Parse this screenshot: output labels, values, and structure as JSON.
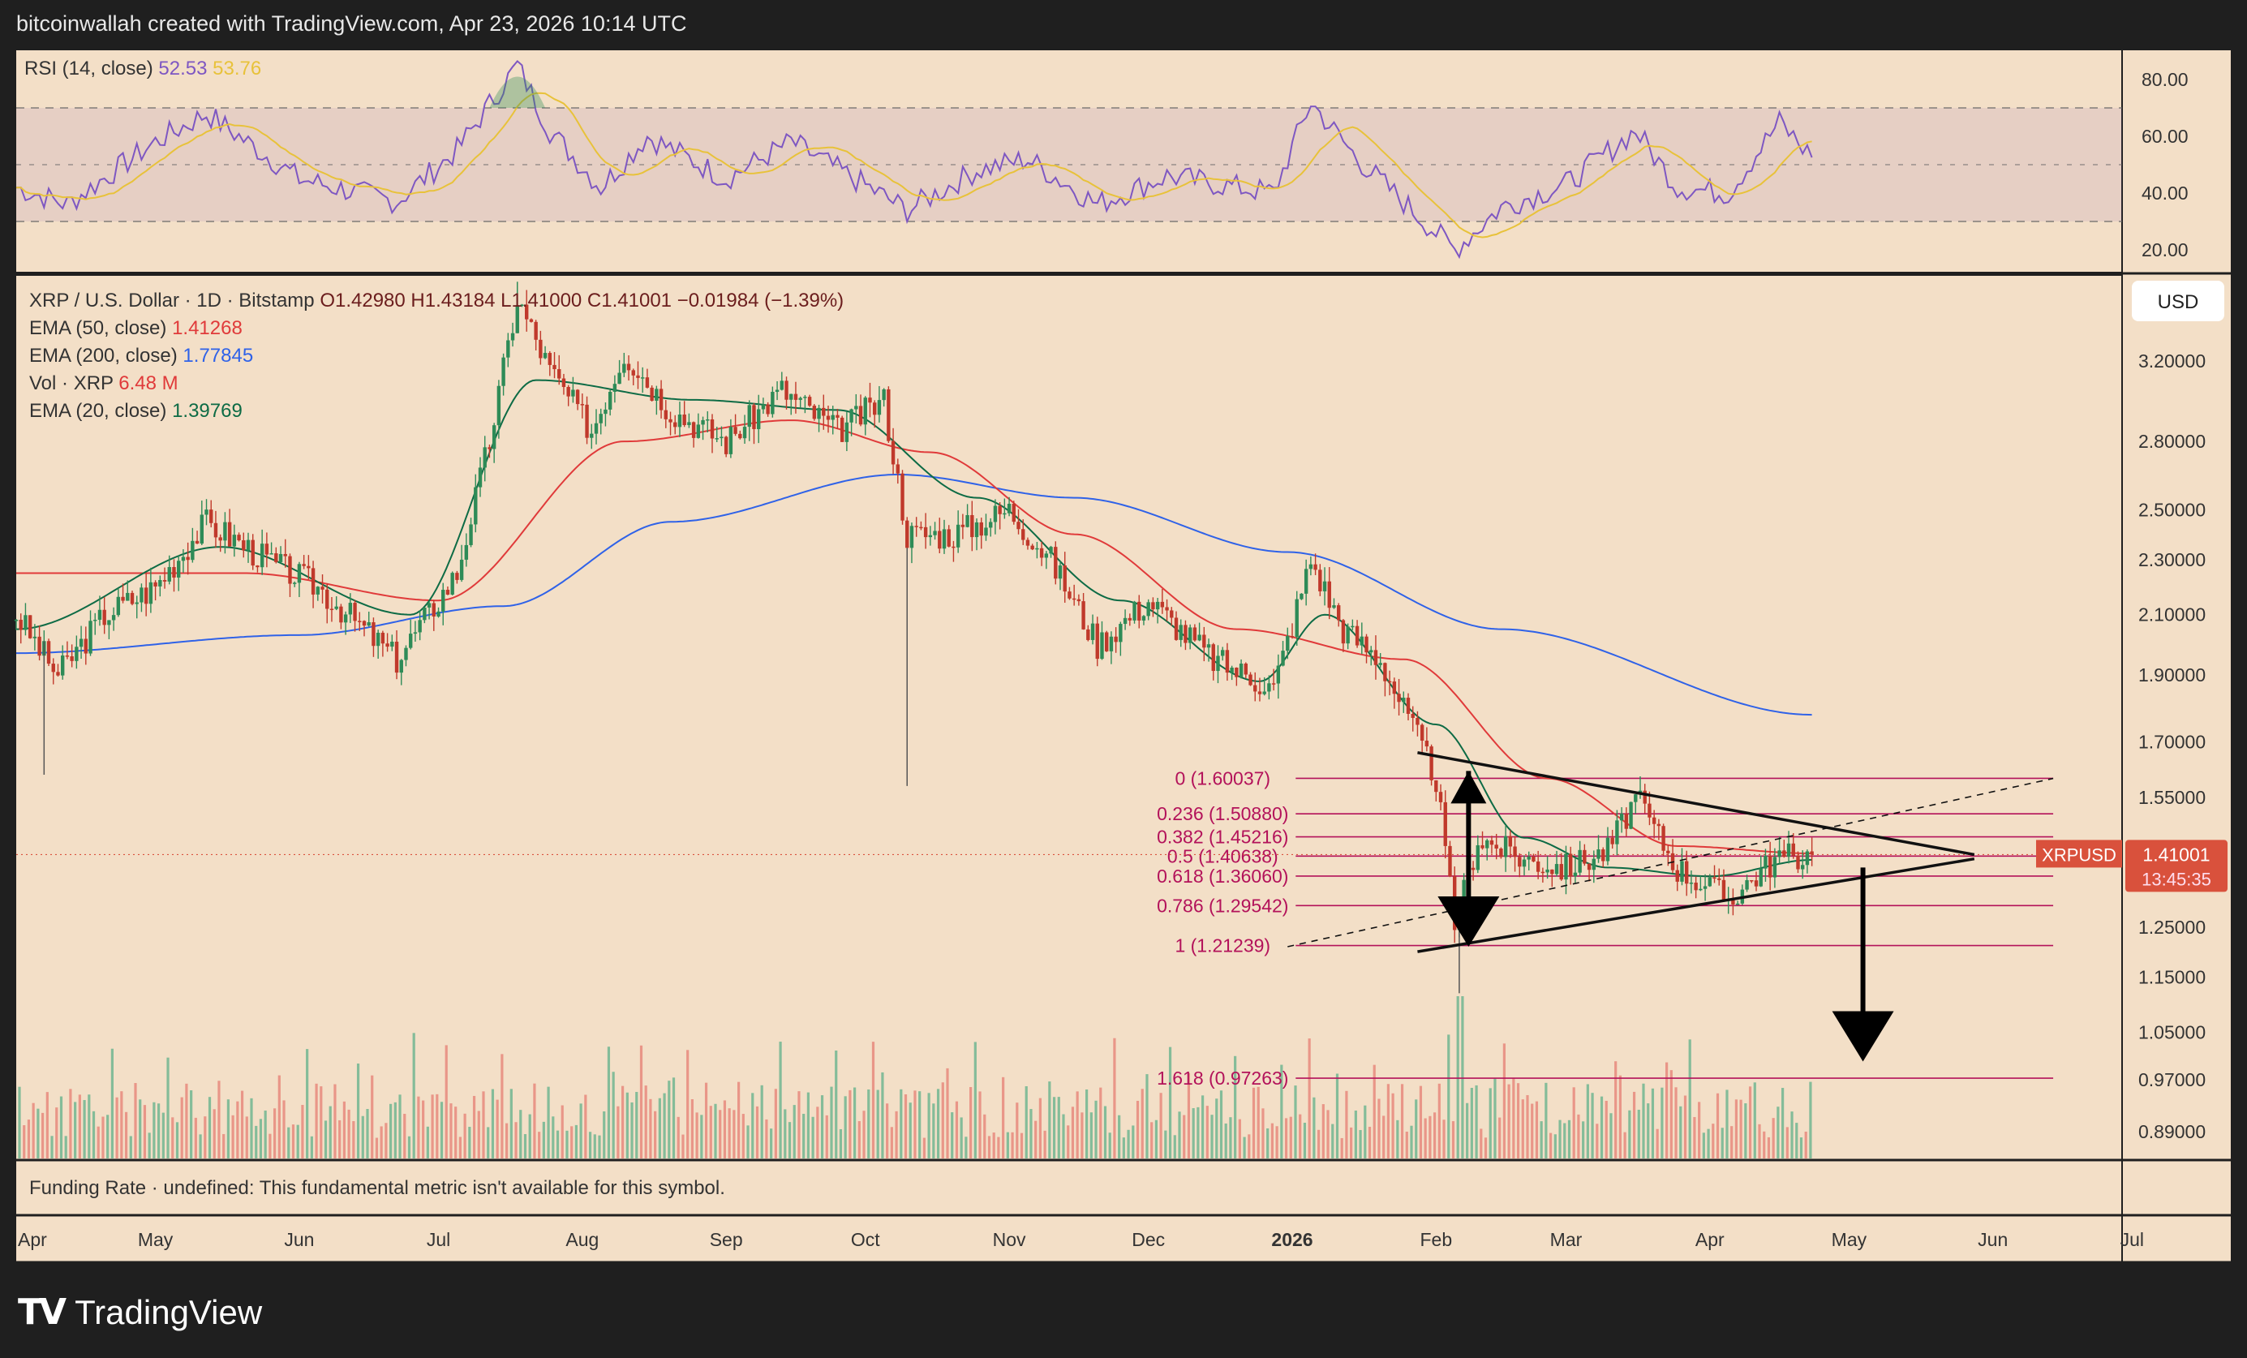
{
  "header": {
    "credit": "bitcoinwallah created with TradingView.com, Apr 23, 2026 10:14 UTC"
  },
  "footer": {
    "brand": "TradingView"
  },
  "colors": {
    "background": "#f3dfc7",
    "frame": "#1f1f1f",
    "candle_up": "#2e8b57",
    "candle_down": "#c0392b",
    "ema20": "#0d6b45",
    "ema50": "#e03a3a",
    "ema200": "#2f62e8",
    "rsi": "#7e57c2",
    "rsi_ma": "#e8c23a",
    "fib": "#b3125a",
    "price_badge": "#d9513c"
  },
  "rsi_panel": {
    "legend_name": "RSI (14, close)",
    "legend_v1": "52.53",
    "legend_v2": "53.76",
    "axis_labels": [
      "80.00",
      "60.00",
      "40.00",
      "20.00"
    ]
  },
  "main_panel": {
    "legend": {
      "symbol": "XRP / U.S. Dollar · 1D · Bitstamp",
      "ohlc": "O1.42980  H1.43184  L1.41000  C1.41001  −0.01984 (−1.39%)",
      "ema50_label": "EMA (50, close)",
      "ema50_value": "1.41268",
      "ema200_label": "EMA (200, close)",
      "ema200_value": "1.77845",
      "vol_label": "Vol · XRP",
      "vol_value": "6.48 M",
      "ema20_label": "EMA (20, close)",
      "ema20_value": "1.39769"
    },
    "currency_button": "USD",
    "price_axis": [
      "3.20000",
      "2.80000",
      "2.50000",
      "2.30000",
      "2.10000",
      "1.90000",
      "1.70000",
      "1.55000",
      "1.25000",
      "1.15000",
      "1.05000",
      "0.97000",
      "0.89000"
    ],
    "price_badge": {
      "symbol": "XRPUSD",
      "price": "1.41001",
      "countdown": "13:45:35"
    }
  },
  "funding_panel": {
    "text": "Funding Rate · undefined: This fundamental metric isn't available for this symbol."
  },
  "time_axis": [
    "Apr",
    "May",
    "Jun",
    "Jul",
    "Aug",
    "Sep",
    "Oct",
    "Nov",
    "Dec",
    "2026",
    "Feb",
    "Mar",
    "Apr",
    "May",
    "Jun",
    "Jul"
  ],
  "chart_data": {
    "type": "candlestick",
    "title": "XRP / U.S. Dollar · 1D · Bitstamp",
    "ohlc_last": {
      "open": 1.4298,
      "high": 1.43184,
      "low": 1.41,
      "close": 1.41001,
      "change": -0.01984,
      "change_pct": -1.39
    },
    "scale": "log",
    "ylim": [
      0.85,
      3.6
    ],
    "x_range": [
      "2025-04-01",
      "2026-07-31"
    ],
    "last_date": "2026-04-23",
    "price_path": [
      [
        "2025-04-01",
        2.1
      ],
      [
        "2025-04-10",
        1.9
      ],
      [
        "2025-04-20",
        2.1
      ],
      [
        "2025-05-01",
        2.2
      ],
      [
        "2025-05-12",
        2.45
      ],
      [
        "2025-05-25",
        2.3
      ],
      [
        "2025-06-05",
        2.2
      ],
      [
        "2025-06-22",
        1.95
      ],
      [
        "2025-07-05",
        2.25
      ],
      [
        "2025-07-12",
        2.8
      ],
      [
        "2025-07-18",
        3.55
      ],
      [
        "2025-07-25",
        3.15
      ],
      [
        "2025-08-03",
        2.85
      ],
      [
        "2025-08-10",
        3.25
      ],
      [
        "2025-08-20",
        2.95
      ],
      [
        "2025-09-01",
        2.8
      ],
      [
        "2025-09-13",
        3.05
      ],
      [
        "2025-09-25",
        2.85
      ],
      [
        "2025-10-05",
        3.0
      ],
      [
        "2025-10-10",
        2.4
      ],
      [
        "2025-10-20",
        2.4
      ],
      [
        "2025-11-01",
        2.5
      ],
      [
        "2025-11-10",
        2.3
      ],
      [
        "2025-11-20",
        2.0
      ],
      [
        "2025-12-01",
        2.15
      ],
      [
        "2025-12-15",
        1.95
      ],
      [
        "2025-12-28",
        1.86
      ],
      [
        "2026-01-05",
        2.3
      ],
      [
        "2026-01-12",
        2.05
      ],
      [
        "2026-01-20",
        1.95
      ],
      [
        "2026-02-01",
        1.6
      ],
      [
        "2026-02-05",
        1.25
      ],
      [
        "2026-02-10",
        1.45
      ],
      [
        "2026-02-20",
        1.4
      ],
      [
        "2026-03-01",
        1.38
      ],
      [
        "2026-03-10",
        1.42
      ],
      [
        "2026-03-16",
        1.55
      ],
      [
        "2026-03-25",
        1.38
      ],
      [
        "2026-04-05",
        1.31
      ],
      [
        "2026-04-15",
        1.4
      ],
      [
        "2026-04-23",
        1.41
      ]
    ],
    "wick_extremes": [
      {
        "date": "2025-04-07",
        "low": 1.61
      },
      {
        "date": "2025-10-10",
        "low": 1.58
      },
      {
        "date": "2026-02-06",
        "low": 1.12
      },
      {
        "date": "2025-07-18",
        "high": 3.65
      }
    ],
    "ema20": [
      [
        "2025-04-01",
        2.05
      ],
      [
        "2025-05-15",
        2.35
      ],
      [
        "2025-06-25",
        2.1
      ],
      [
        "2025-07-22",
        3.1
      ],
      [
        "2025-08-25",
        3.0
      ],
      [
        "2025-09-25",
        2.95
      ],
      [
        "2025-10-25",
        2.55
      ],
      [
        "2025-11-25",
        2.15
      ],
      [
        "2025-12-25",
        1.88
      ],
      [
        "2026-01-08",
        2.1
      ],
      [
        "2026-02-01",
        1.75
      ],
      [
        "2026-02-20",
        1.45
      ],
      [
        "2026-03-10",
        1.38
      ],
      [
        "2026-04-01",
        1.36
      ],
      [
        "2026-04-23",
        1.39769
      ]
    ],
    "ema50": [
      [
        "2025-04-01",
        2.25
      ],
      [
        "2025-05-20",
        2.25
      ],
      [
        "2025-07-01",
        2.15
      ],
      [
        "2025-08-10",
        2.8
      ],
      [
        "2025-09-15",
        2.9
      ],
      [
        "2025-10-15",
        2.75
      ],
      [
        "2025-11-15",
        2.4
      ],
      [
        "2025-12-20",
        2.05
      ],
      [
        "2026-01-25",
        1.95
      ],
      [
        "2026-02-25",
        1.6
      ],
      [
        "2026-03-25",
        1.43
      ],
      [
        "2026-04-23",
        1.41268
      ]
    ],
    "ema200": [
      [
        "2025-04-01",
        1.97
      ],
      [
        "2025-06-01",
        2.03
      ],
      [
        "2025-07-15",
        2.13
      ],
      [
        "2025-08-20",
        2.45
      ],
      [
        "2025-10-08",
        2.65
      ],
      [
        "2025-11-15",
        2.55
      ],
      [
        "2025-12-31",
        2.33
      ],
      [
        "2026-02-15",
        2.05
      ],
      [
        "2026-04-23",
        1.77845
      ]
    ],
    "rsi": {
      "levels": [
        70,
        50,
        30
      ],
      "points": [
        [
          "2025-04-01",
          42
        ],
        [
          "2025-04-12",
          36
        ],
        [
          "2025-05-01",
          58
        ],
        [
          "2025-05-12",
          68
        ],
        [
          "2025-06-01",
          45
        ],
        [
          "2025-06-22",
          37
        ],
        [
          "2025-07-05",
          55
        ],
        [
          "2025-07-18",
          85
        ],
        [
          "2025-07-25",
          62
        ],
        [
          "2025-08-05",
          42
        ],
        [
          "2025-08-15",
          60
        ],
        [
          "2025-09-01",
          45
        ],
        [
          "2025-09-15",
          58
        ],
        [
          "2025-10-10",
          34
        ],
        [
          "2025-10-25",
          48
        ],
        [
          "2025-11-05",
          52
        ],
        [
          "2025-11-20",
          36
        ],
        [
          "2025-12-05",
          46
        ],
        [
          "2025-12-28",
          40
        ],
        [
          "2026-01-05",
          72
        ],
        [
          "2026-01-15",
          52
        ],
        [
          "2026-02-05",
          20
        ],
        [
          "2026-02-15",
          35
        ],
        [
          "2026-03-01",
          43
        ],
        [
          "2026-03-16",
          62
        ],
        [
          "2026-03-25",
          42
        ],
        [
          "2026-04-05",
          40
        ],
        [
          "2026-04-16",
          65
        ],
        [
          "2026-04-23",
          52.53
        ]
      ]
    },
    "volume_spikes": [
      "2026-02-06"
    ],
    "fibonacci": [
      {
        "label": "0 (1.60037)",
        "value": 1.60037
      },
      {
        "label": "0.236 (1.50880)",
        "value": 1.5088
      },
      {
        "label": "0.382 (1.45216)",
        "value": 1.45216
      },
      {
        "label": "0.5 (1.40638)",
        "value": 1.40638
      },
      {
        "label": "0.618 (1.36060)",
        "value": 1.3606
      },
      {
        "label": "0.786 (1.29542)",
        "value": 1.29542
      },
      {
        "label": "1 (1.21239)",
        "value": 1.21239
      },
      {
        "label": "1.618 (0.97263)",
        "value": 0.97263
      }
    ],
    "trendlines": [
      {
        "name": "upper",
        "from": [
          "2026-01-28",
          1.67
        ],
        "to": [
          "2026-05-28",
          1.41
        ]
      },
      {
        "name": "lower",
        "from": [
          "2026-01-28",
          1.2
        ],
        "to": [
          "2026-05-28",
          1.4
        ]
      },
      {
        "name": "dashed",
        "from": [
          "2025-12-31",
          1.21
        ],
        "to": [
          "2026-06-14",
          1.6
        ]
      }
    ],
    "arrows": [
      {
        "x": "2026-02-08",
        "from": 1.62,
        "to": 1.21
      },
      {
        "x": "2026-05-04",
        "from": 1.38,
        "to": 1.0
      }
    ],
    "fib_extent": [
      "2025-12-31",
      "2026-06-14"
    ]
  }
}
